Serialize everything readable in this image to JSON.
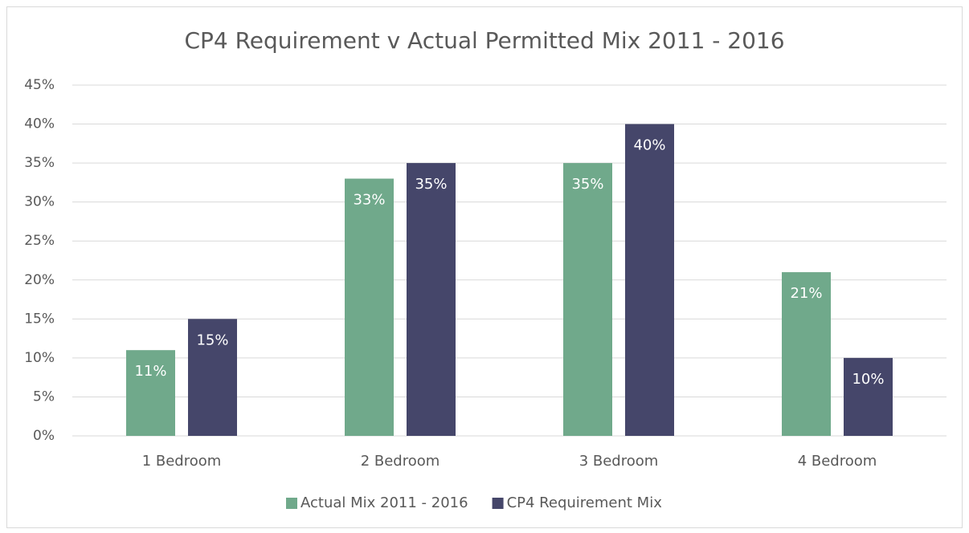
{
  "chart_data": {
    "type": "bar",
    "title": "CP4 Requirement v Actual Permitted Mix 2011 - 2016",
    "categories": [
      "1 Bedroom",
      "2 Bedroom",
      "3 Bedroom",
      "4 Bedroom"
    ],
    "series": [
      {
        "name": "Actual Mix 2011 - 2016",
        "color": "#70a98b",
        "values": [
          11,
          33,
          35,
          21
        ],
        "value_labels": [
          "11%",
          "33%",
          "35%",
          "21%"
        ]
      },
      {
        "name": "CP4 Requirement Mix",
        "color": "#45466a",
        "values": [
          15,
          35,
          40,
          10
        ],
        "value_labels": [
          "15%",
          "35%",
          "40%",
          "10%"
        ]
      }
    ],
    "ylim": [
      0,
      45
    ],
    "yticks": [
      {
        "value": 0,
        "label": "0%"
      },
      {
        "value": 5,
        "label": "5%"
      },
      {
        "value": 10,
        "label": "10%"
      },
      {
        "value": 15,
        "label": "15%"
      },
      {
        "value": 20,
        "label": "20%"
      },
      {
        "value": 25,
        "label": "25%"
      },
      {
        "value": 30,
        "label": "30%"
      },
      {
        "value": 35,
        "label": "35%"
      },
      {
        "value": 40,
        "label": "40%"
      },
      {
        "value": 45,
        "label": "45%"
      }
    ],
    "grid": true,
    "legend": "bottom"
  }
}
